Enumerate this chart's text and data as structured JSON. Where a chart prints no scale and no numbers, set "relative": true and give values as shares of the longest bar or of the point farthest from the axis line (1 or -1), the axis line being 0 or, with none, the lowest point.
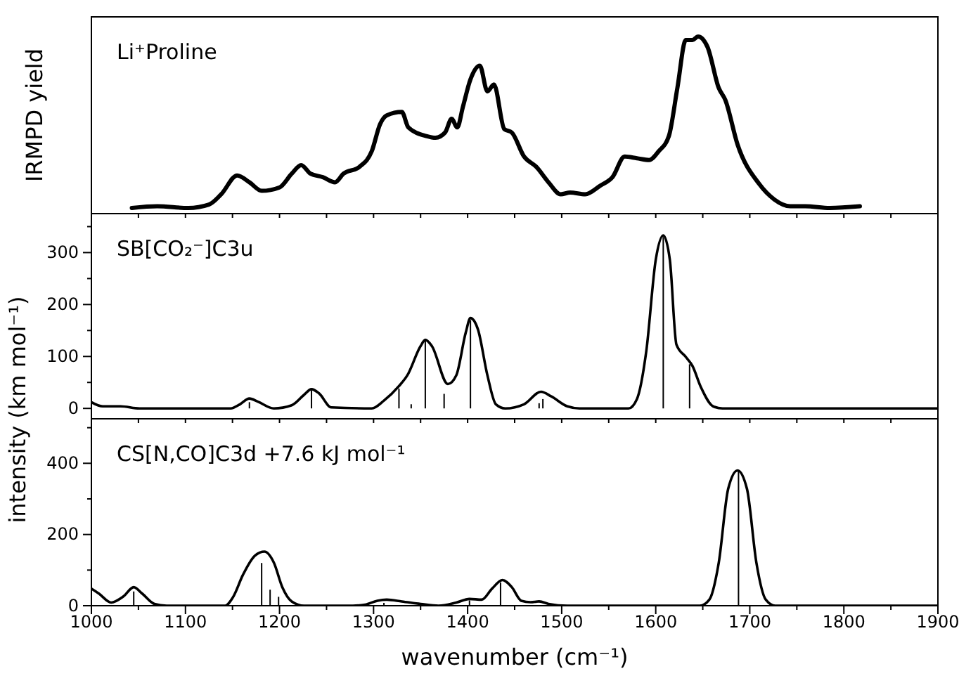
{
  "chart_data": [
    {
      "type": "line",
      "title": "Li⁺Proline",
      "ylabel": "IRMPD yield",
      "relative": true,
      "tick_labels": false,
      "xlim": [
        1000,
        1900
      ],
      "xticks": [
        {
          "value": 1000,
          "label": null
        },
        {
          "value": 1050,
          "label": null
        },
        {
          "value": 1100,
          "label": null
        },
        {
          "value": 1150,
          "label": null
        },
        {
          "value": 1200,
          "label": null
        },
        {
          "value": 1250,
          "label": null
        },
        {
          "value": 1300,
          "label": null
        },
        {
          "value": 1350,
          "label": null
        },
        {
          "value": 1400,
          "label": null
        },
        {
          "value": 1450,
          "label": null
        },
        {
          "value": 1500,
          "label": null
        },
        {
          "value": 1550,
          "label": null
        },
        {
          "value": 1600,
          "label": null
        },
        {
          "value": 1650,
          "label": null
        },
        {
          "value": 1700,
          "label": null
        },
        {
          "value": 1750,
          "label": null
        },
        {
          "value": 1800,
          "label": null
        },
        {
          "value": 1850,
          "label": null
        },
        {
          "value": 1900,
          "label": null
        }
      ],
      "series": [
        {
          "color": "#000000",
          "x": [
            1043,
            1070,
            1103,
            1125,
            1138,
            1155,
            1168,
            1181,
            1200,
            1213,
            1223,
            1233,
            1246,
            1259,
            1268,
            1285,
            1298,
            1307,
            1314,
            1330,
            1337,
            1356,
            1366,
            1376,
            1383,
            1389,
            1395,
            1403,
            1413,
            1421,
            1428,
            1439,
            1447,
            1460,
            1473,
            1486,
            1499,
            1509,
            1525,
            1541,
            1554,
            1567,
            1580,
            1593,
            1603,
            1614,
            1623,
            1632,
            1639,
            1645,
            1655,
            1667,
            1674,
            1687,
            1710,
            1726,
            1743,
            1759,
            1785,
            1817
          ],
          "values": [
            0,
            0.01,
            0,
            0.02,
            0.08,
            0.19,
            0.15,
            0.1,
            0.12,
            0.2,
            0.25,
            0.2,
            0.18,
            0.15,
            0.2,
            0.24,
            0.33,
            0.49,
            0.54,
            0.56,
            0.47,
            0.42,
            0.41,
            0.44,
            0.52,
            0.47,
            0.59,
            0.75,
            0.83,
            0.68,
            0.72,
            0.46,
            0.44,
            0.3,
            0.24,
            0.15,
            0.08,
            0.09,
            0.08,
            0.13,
            0.18,
            0.3,
            0.29,
            0.28,
            0.33,
            0.42,
            0.7,
            0.98,
            0.98,
            1.0,
            0.94,
            0.7,
            0.63,
            0.37,
            0.14,
            0.05,
            0.01,
            0.01,
            0,
            0.01
          ]
        }
      ]
    },
    {
      "type": "line",
      "title": "SB[CO₂⁻]C3u",
      "tick_labels": "y",
      "xlim": [
        1000,
        1900
      ],
      "xticks": [
        {
          "value": 1000,
          "label": null
        },
        {
          "value": 1050,
          "label": null
        },
        {
          "value": 1100,
          "label": null
        },
        {
          "value": 1150,
          "label": null
        },
        {
          "value": 1200,
          "label": null
        },
        {
          "value": 1250,
          "label": null
        },
        {
          "value": 1300,
          "label": null
        },
        {
          "value": 1350,
          "label": null
        },
        {
          "value": 1400,
          "label": null
        },
        {
          "value": 1450,
          "label": null
        },
        {
          "value": 1500,
          "label": null
        },
        {
          "value": 1550,
          "label": null
        },
        {
          "value": 1600,
          "label": null
        },
        {
          "value": 1650,
          "label": null
        },
        {
          "value": 1700,
          "label": null
        },
        {
          "value": 1750,
          "label": null
        },
        {
          "value": 1800,
          "label": null
        },
        {
          "value": 1850,
          "label": null
        },
        {
          "value": 1900,
          "label": null
        }
      ],
      "ylim": [
        -20,
        375
      ],
      "yticks": [
        0,
        {
          "value": 50,
          "label": null
        },
        100,
        {
          "value": 150,
          "label": null
        },
        200,
        {
          "value": 250,
          "label": null
        },
        300,
        {
          "value": 350,
          "label": null
        }
      ],
      "series": [
        {
          "color": "#000000",
          "x": [
            1000,
            1012,
            1031,
            1051,
            1148,
            1158,
            1168,
            1177,
            1194,
            1213,
            1226,
            1234,
            1242,
            1255,
            1298,
            1311,
            1327,
            1336,
            1350,
            1355,
            1362,
            1379,
            1388,
            1398,
            1403,
            1411,
            1421,
            1430,
            1440,
            1460,
            1478,
            1489,
            1506,
            1519,
            1571,
            1580,
            1590,
            1600,
            1608,
            1615,
            1622,
            1632,
            1639,
            1648,
            1661,
            1671,
            1900
          ],
          "values": [
            12,
            4,
            4,
            0,
            0,
            8,
            19,
            13,
            0,
            6,
            26,
            37,
            29,
            2,
            0,
            15,
            43,
            64,
            120,
            132,
            120,
            47,
            64,
            146,
            174,
            152,
            64,
            8,
            0,
            8,
            32,
            23,
            4,
            0,
            0,
            18,
            111,
            286,
            333,
            286,
            123,
            99,
            82,
            41,
            4,
            0,
            0
          ]
        },
        {
          "type": "bar",
          "color": "#000000",
          "x": [
            1168,
            1234,
            1327,
            1340,
            1355,
            1375,
            1403,
            1476,
            1480,
            1608,
            1636
          ],
          "values": [
            12,
            35,
            38,
            8,
            130,
            28,
            170,
            10,
            18,
            330,
            85
          ]
        }
      ]
    },
    {
      "type": "line",
      "title": "CS[N,CO]C3d +7.6 kJ mol⁻¹",
      "xlabel": "wavenumber (cm⁻¹)",
      "ylabel": "intensity (km mol⁻¹)",
      "xlim": [
        1000,
        1900
      ],
      "xticks": [
        1000,
        {
          "value": 1050,
          "label": null
        },
        1100,
        {
          "value": 1150,
          "label": null
        },
        1200,
        {
          "value": 1250,
          "label": null
        },
        1300,
        {
          "value": 1350,
          "label": null
        },
        1400,
        {
          "value": 1450,
          "label": null
        },
        1500,
        {
          "value": 1550,
          "label": null
        },
        1600,
        {
          "value": 1650,
          "label": null
        },
        1700,
        {
          "value": 1750,
          "label": null
        },
        1800,
        {
          "value": 1850,
          "label": null
        },
        1900
      ],
      "ylim": [
        0,
        525
      ],
      "yticks": [
        0,
        {
          "value": 100,
          "label": null
        },
        200,
        {
          "value": 300,
          "label": null
        },
        400,
        {
          "value": 500,
          "label": null
        }
      ],
      "series": [
        {
          "color": "#000000",
          "x": [
            1000,
            1008,
            1021,
            1034,
            1045,
            1054,
            1067,
            1080,
            1142,
            1151,
            1161,
            1174,
            1184,
            1194,
            1203,
            1213,
            1226,
            1278,
            1291,
            1304,
            1314,
            1330,
            1350,
            1369,
            1388,
            1402,
            1415,
            1426,
            1437,
            1447,
            1457,
            1467,
            1476,
            1486,
            1506,
            1647,
            1657,
            1667,
            1677,
            1687,
            1697,
            1707,
            1717,
            1727,
            1900
          ],
          "values": [
            48,
            34,
            9,
            26,
            52,
            34,
            5,
            0,
            0,
            26,
            86,
            141,
            152,
            121,
            52,
            12,
            0,
            0,
            3,
            14,
            17,
            12,
            5,
            0,
            9,
            19,
            17,
            48,
            72,
            52,
            14,
            10,
            12,
            5,
            0,
            0,
            17,
            121,
            328,
            380,
            328,
            121,
            17,
            0,
            0
          ]
        },
        {
          "type": "bar",
          "color": "#000000",
          "x": [
            1045,
            1181,
            1190,
            1199,
            1311,
            1402,
            1435,
            1688
          ],
          "values": [
            40,
            120,
            45,
            25,
            8,
            15,
            65,
            380
          ]
        }
      ]
    }
  ]
}
